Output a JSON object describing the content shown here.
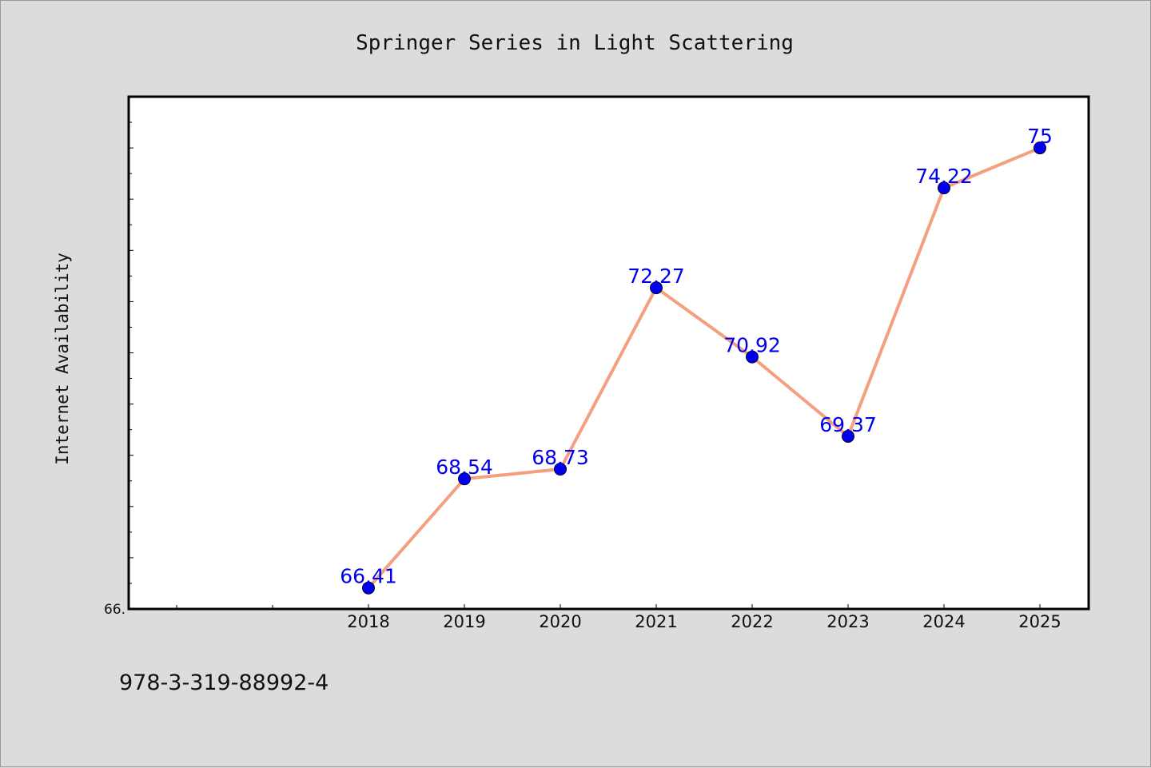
{
  "chart_data": {
    "type": "line",
    "title": "Springer Series in Light Scattering",
    "xlabel": "",
    "ylabel": "Internet Availability",
    "categories": [
      "2018",
      "2019",
      "2020",
      "2021",
      "2022",
      "2023",
      "2024",
      "2025"
    ],
    "series": [
      {
        "values": [
          66.41,
          68.54,
          68.73,
          72.27,
          70.92,
          69.37,
          74.22,
          75
        ],
        "labels": [
          "66.41",
          "68.54",
          "68.73",
          "72.27",
          "70.92",
          "69.37",
          "74.22",
          "75"
        ]
      }
    ],
    "ylim": [
      66,
      76
    ],
    "y_min_tick_label": "66.",
    "line_color": "#f4a080",
    "marker_color": "#0000ee",
    "label_color": "#0000ee",
    "grid": false,
    "legend": "none"
  },
  "footer": {
    "isbn": "978-3-319-88992-4"
  }
}
